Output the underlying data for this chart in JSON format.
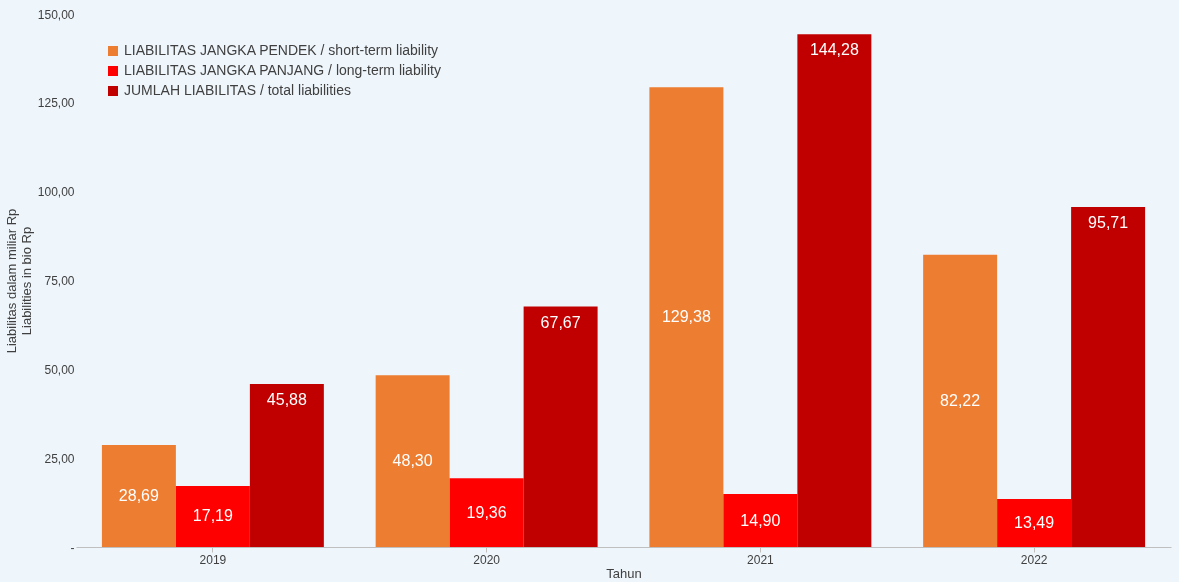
{
  "chart_data": {
    "type": "bar",
    "xlabel": "Tahun",
    "ylabel": "Liabilitas dalam miliar Rp\nLiabilities in bio Rp",
    "categories": [
      "2019",
      "2020",
      "2021",
      "2022"
    ],
    "series": [
      {
        "name": "LIABILITAS JANGKA PENDEK / short-term liability",
        "color": "#ed7d31",
        "values": [
          28.69,
          48.3,
          129.38,
          82.22
        ],
        "value_labels": [
          "28,69",
          "48,30",
          "129,38",
          "82,22"
        ]
      },
      {
        "name": "LIABILITAS JANGKA PANJANG / long-term liability",
        "color": "#ff0000",
        "values": [
          17.19,
          19.36,
          14.9,
          13.49
        ],
        "value_labels": [
          "17,19",
          "19,36",
          "14,90",
          "13,49"
        ]
      },
      {
        "name": "JUMLAH LIABILITAS / total liabilities",
        "color": "#c00000",
        "values": [
          45.88,
          67.67,
          144.28,
          95.71
        ],
        "value_labels": [
          "45,88",
          "67,67",
          "144,28",
          "95,71"
        ]
      }
    ],
    "ylim": [
      0,
      150
    ],
    "yticks": [
      {
        "value": 0,
        "label": "-"
      },
      {
        "value": 25,
        "label": "25,00"
      },
      {
        "value": 50,
        "label": "50,00"
      },
      {
        "value": 75,
        "label": "75,00"
      },
      {
        "value": 100,
        "label": "100,00"
      },
      {
        "value": 125,
        "label": "125,00"
      },
      {
        "value": 150,
        "label": "150,00"
      }
    ],
    "grid": false,
    "legend": "top left"
  }
}
